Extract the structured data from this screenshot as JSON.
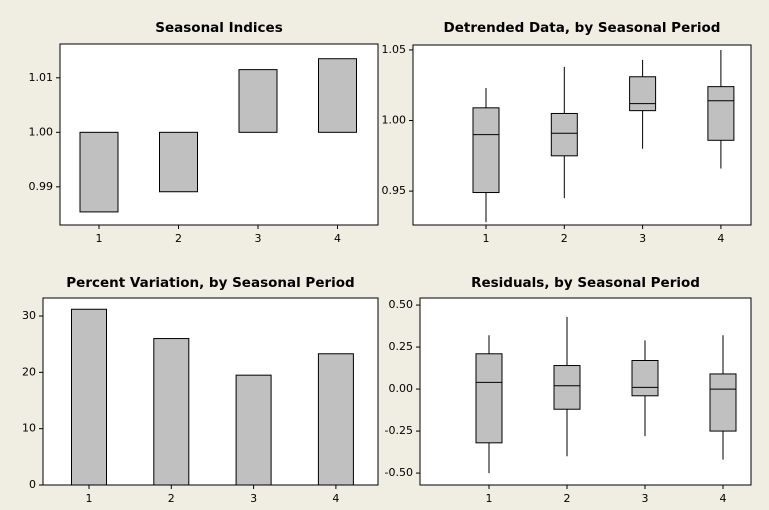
{
  "chart_data": [
    {
      "type": "bar",
      "title": "Seasonal Indices",
      "categories": [
        "1",
        "2",
        "3",
        "4"
      ],
      "values": [
        0.9854,
        0.9891,
        1.0115,
        1.0135
      ],
      "baseline": 1,
      "color": "#c0c0c0",
      "ylim": [
        0.983,
        1.0162
      ],
      "yticks": [
        0.99,
        {
          "value": 1.0,
          "label": "1.00"
        },
        1.01
      ]
    },
    {
      "type": "box",
      "title": "Detrended Data, by Seasonal Period",
      "categories": [
        "1",
        "2",
        "3",
        "4"
      ],
      "min": [
        0.928,
        0.945,
        0.98,
        0.966
      ],
      "q1": [
        0.949,
        0.975,
        1.007,
        0.986
      ],
      "median": [
        0.99,
        0.991,
        1.012,
        1.014
      ],
      "q3": [
        1.009,
        1.005,
        1.031,
        1.024
      ],
      "max": [
        1.023,
        1.038,
        1.043,
        1.05
      ],
      "color": "#c0c0c0",
      "ylim": [
        0.926,
        1.0535
      ],
      "yticks": [
        0.95,
        {
          "value": 1.0,
          "label": "1.00"
        },
        1.05
      ]
    },
    {
      "type": "bar",
      "title": "Percent Variation, by Seasonal Period",
      "categories": [
        "1",
        "2",
        "3",
        "4"
      ],
      "values": [
        31.2,
        26.0,
        19.5,
        23.3
      ],
      "color": "#c0c0c0",
      "ylim": [
        0,
        33.2
      ],
      "yticks": [
        0,
        10,
        20,
        30
      ]
    },
    {
      "type": "box",
      "title": "Residuals, by Seasonal Period",
      "categories": [
        "1",
        "2",
        "3",
        "4"
      ],
      "min": [
        -0.5,
        -0.4,
        -0.28,
        -0.42
      ],
      "q1": [
        -0.32,
        -0.12,
        -0.04,
        -0.25
      ],
      "median": [
        0.04,
        0.02,
        0.01,
        0.0
      ],
      "q3": [
        0.21,
        0.14,
        0.17,
        0.09
      ],
      "max": [
        0.32,
        0.43,
        0.29,
        0.32
      ],
      "color": "#c0c0c0",
      "ylim": [
        -0.571,
        0.542
      ],
      "yticks": [
        {
          "value": -0.5,
          "label": "-0.50"
        },
        -0.25,
        {
          "value": 0,
          "label": "0.00"
        },
        0.25,
        {
          "value": 0.5,
          "label": "0.50"
        }
      ]
    }
  ]
}
